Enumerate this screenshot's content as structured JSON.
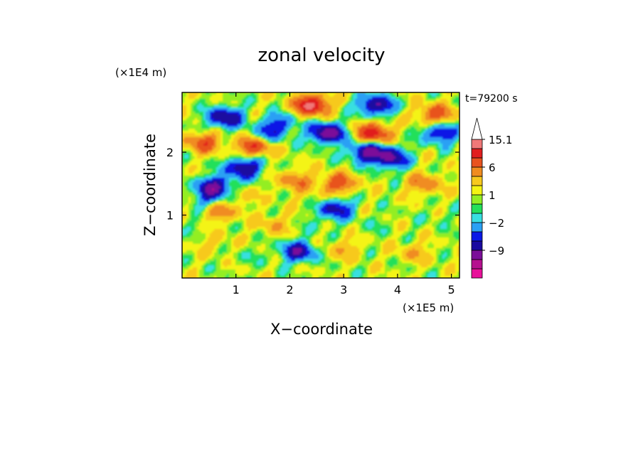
{
  "chart_data": {
    "type": "heatmap",
    "title": "zonal velocity",
    "xlabel": "X−coordinate",
    "ylabel": "Z−coordinate",
    "x_scale_label": "(×1E5 m)",
    "y_scale_label": "(×1E4 m)",
    "time_label": "t=79200 s",
    "xlim": [
      0,
      5.15
    ],
    "ylim": [
      0,
      2.95
    ],
    "x_ticks": [
      {
        "value": 1,
        "label": "1"
      },
      {
        "value": 2,
        "label": "2"
      },
      {
        "value": 3,
        "label": "3"
      },
      {
        "value": 4,
        "label": "4"
      },
      {
        "value": 5,
        "label": "5"
      }
    ],
    "y_ticks": [
      {
        "value": 1,
        "label": "1"
      },
      {
        "value": 2,
        "label": "2"
      }
    ],
    "colorbar": {
      "levels": [
        -15,
        -12,
        -9,
        -6,
        -4,
        -2,
        -1,
        0,
        1,
        2,
        4,
        6,
        9,
        12,
        15.1
      ],
      "colors": [
        "#e8119a",
        "#b5108f",
        "#7b0f99",
        "#1a0aa0",
        "#0a18e6",
        "#2aa0f4",
        "#38dfe0",
        "#24e05a",
        "#93ee24",
        "#f4f414",
        "#f7c91e",
        "#f08c20",
        "#e8531f",
        "#e11e1e",
        "#f07878",
        "#f5b6b6"
      ],
      "tick_labels": [
        {
          "value": 15.1,
          "label": "15.1"
        },
        {
          "value": 6,
          "label": "6"
        },
        {
          "value": 1,
          "label": "1"
        },
        {
          "value": -2,
          "label": "−2"
        },
        {
          "value": -9,
          "label": "−9"
        }
      ]
    },
    "features": [
      {
        "x": 0.8,
        "z": 2.55,
        "v": -10
      },
      {
        "x": 0.6,
        "z": 1.45,
        "v": -10
      },
      {
        "x": 1.15,
        "z": 1.75,
        "v": -10
      },
      {
        "x": 2.7,
        "z": 2.3,
        "v": -12
      },
      {
        "x": 3.6,
        "z": 2.75,
        "v": -10
      },
      {
        "x": 3.4,
        "z": 2.0,
        "v": -9
      },
      {
        "x": 3.8,
        "z": 1.95,
        "v": -7
      },
      {
        "x": 1.8,
        "z": 2.45,
        "v": -6
      },
      {
        "x": 1.55,
        "z": 2.25,
        "v": -5
      },
      {
        "x": 2.85,
        "z": 1.1,
        "v": -8
      },
      {
        "x": 2.15,
        "z": 0.42,
        "v": -9
      },
      {
        "x": 0.5,
        "z": 1.25,
        "v": -4
      },
      {
        "x": 3.95,
        "z": 1.85,
        "v": -4
      },
      {
        "x": 4.8,
        "z": 2.3,
        "v": -8
      },
      {
        "x": 2.4,
        "z": 2.75,
        "v": 12
      },
      {
        "x": 3.55,
        "z": 2.3,
        "v": 10
      },
      {
        "x": 1.35,
        "z": 2.1,
        "v": 9
      },
      {
        "x": 0.4,
        "z": 2.15,
        "v": 7
      },
      {
        "x": 2.9,
        "z": 1.5,
        "v": 7
      },
      {
        "x": 0.7,
        "z": 1.05,
        "v": 5
      },
      {
        "x": 2.1,
        "z": 1.55,
        "v": 5
      },
      {
        "x": 4.5,
        "z": 1.5,
        "v": 5
      },
      {
        "x": 4.7,
        "z": 2.6,
        "v": 7
      },
      {
        "x": 3.0,
        "z": 0.45,
        "v": 3
      },
      {
        "x": 4.3,
        "z": 0.4,
        "v": 3
      },
      {
        "x": 1.7,
        "z": 0.85,
        "v": 3
      },
      {
        "x": 0.6,
        "z": 0.55,
        "v": 2
      },
      {
        "x": 1.2,
        "z": 0.35,
        "v": -1
      },
      {
        "x": 3.6,
        "z": 0.85,
        "v": -1
      },
      {
        "x": 2.5,
        "z": 0.85,
        "v": -1
      },
      {
        "x": 0.3,
        "z": 0.85,
        "v": -1
      },
      {
        "x": 4.8,
        "z": 0.95,
        "v": -1
      },
      {
        "x": 1.1,
        "z": 1.3,
        "v": 2
      },
      {
        "x": 2.4,
        "z": 1.25,
        "v": 1
      }
    ]
  }
}
